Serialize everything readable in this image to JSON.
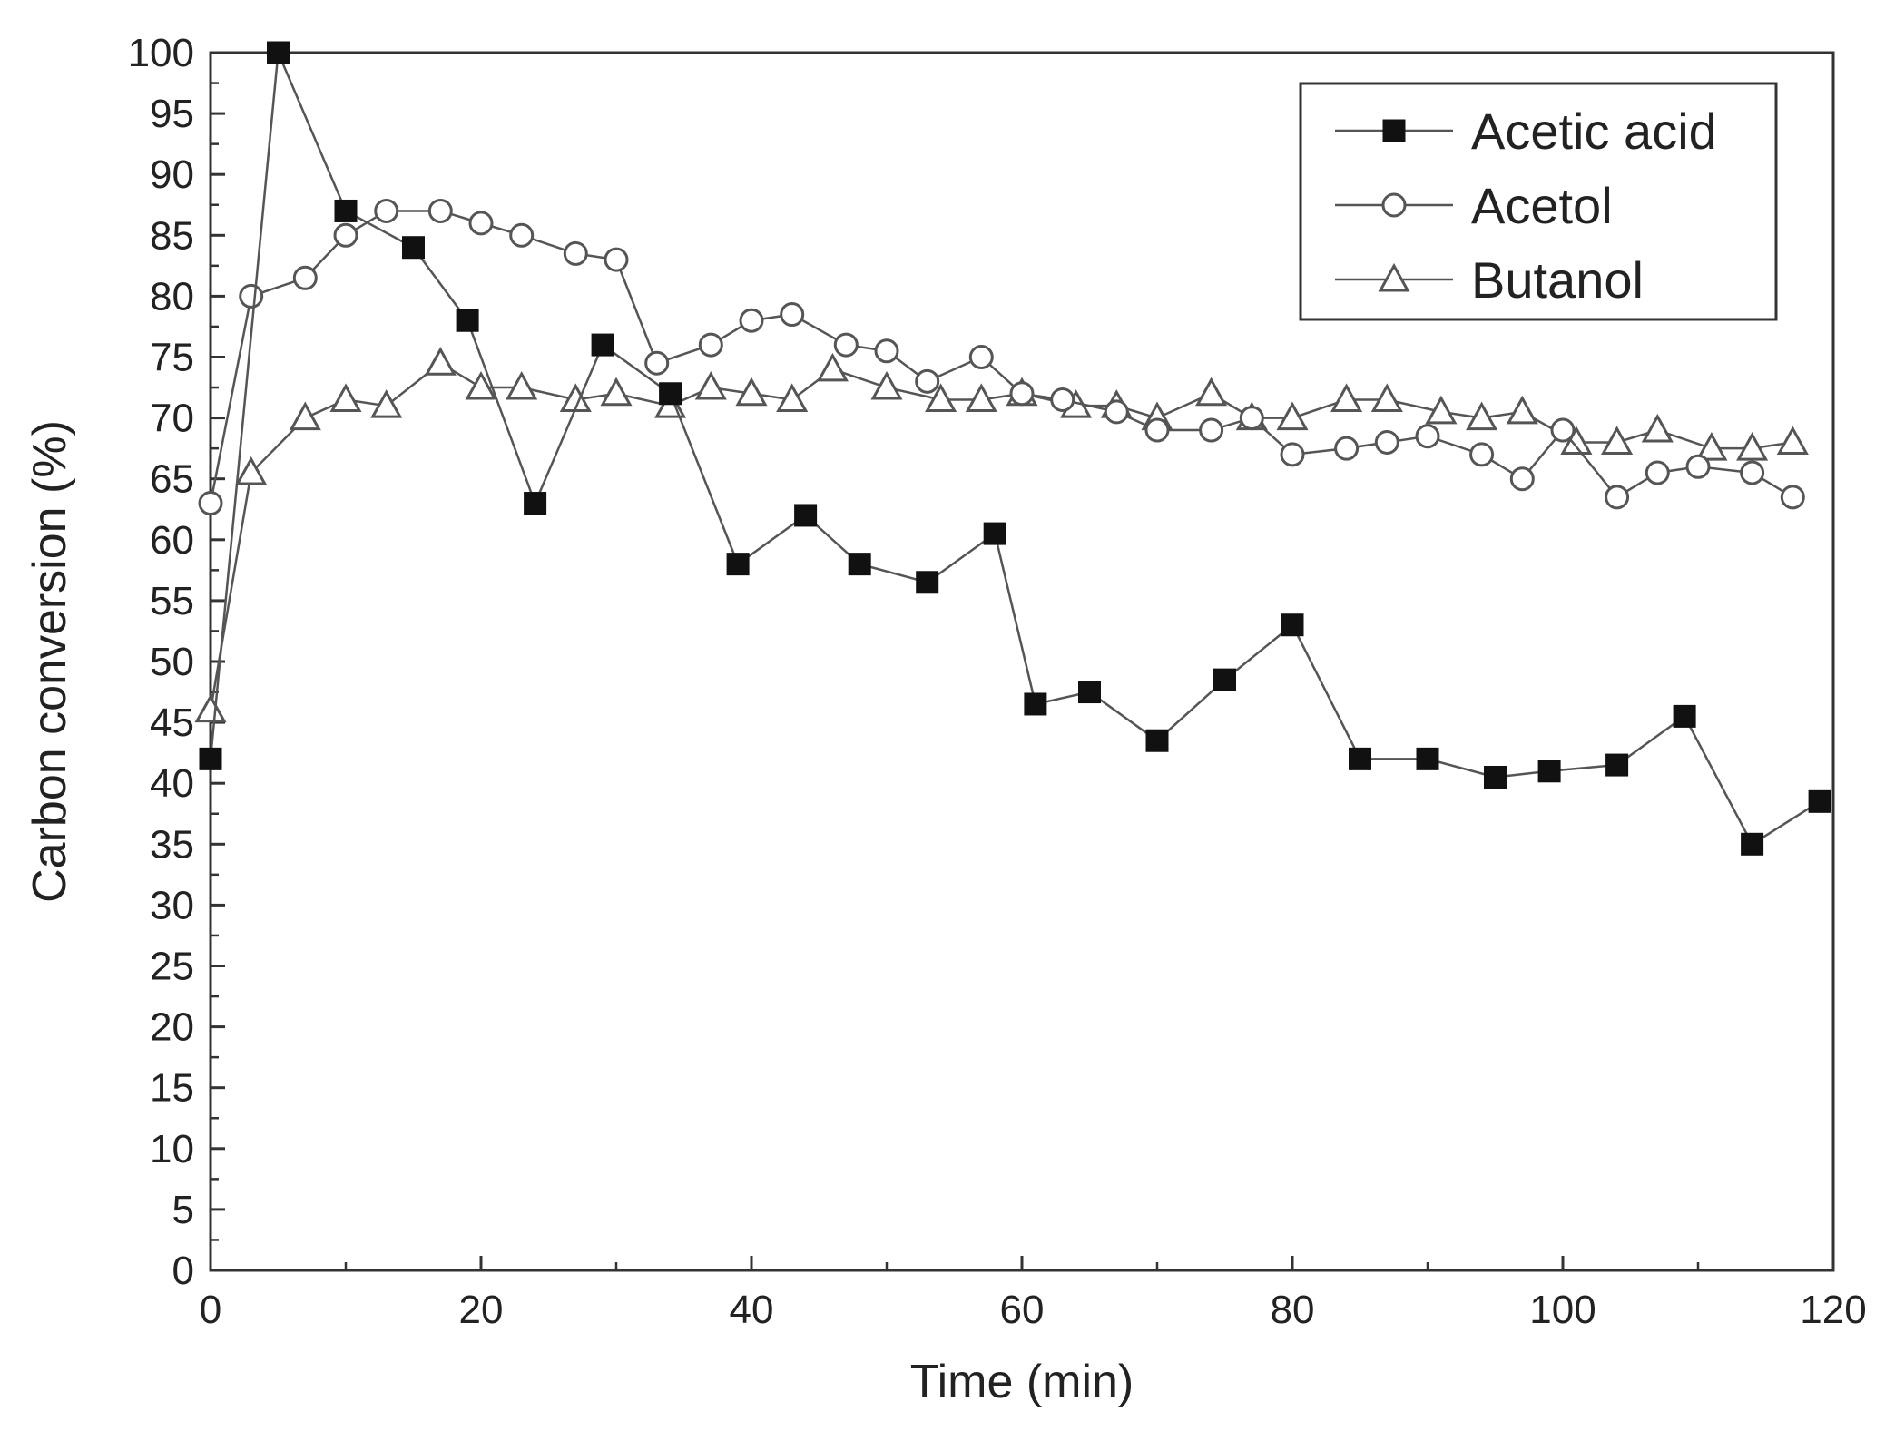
{
  "chart_data": {
    "type": "line",
    "title": "",
    "xlabel": "Time (min)",
    "ylabel": "Carbon conversion (%)",
    "xlim": [
      0,
      120
    ],
    "ylim": [
      0,
      100
    ],
    "xticks": [
      0,
      20,
      40,
      60,
      80,
      100,
      120
    ],
    "yticks": [
      0,
      5,
      10,
      15,
      20,
      25,
      30,
      35,
      40,
      45,
      50,
      55,
      60,
      65,
      70,
      75,
      80,
      85,
      90,
      95,
      100
    ],
    "grid": false,
    "legend_position": "top-right",
    "colors": {
      "line": "#555555",
      "marker": "#111111",
      "axis": "#333333"
    },
    "series": [
      {
        "name": "Acetic acid",
        "marker": "filled-square",
        "x": [
          0,
          5,
          10,
          15,
          19,
          24,
          29,
          34,
          39,
          44,
          48,
          53,
          58,
          61,
          65,
          70,
          75,
          80,
          85,
          90,
          95,
          99,
          104,
          109,
          114,
          119
        ],
        "y": [
          42,
          100,
          87,
          84,
          78,
          63,
          76,
          72,
          58,
          62,
          58,
          56.5,
          60.5,
          46.5,
          47.5,
          43.5,
          48.5,
          53,
          42,
          42,
          40.5,
          41,
          41.5,
          45.5,
          35,
          38.5
        ]
      },
      {
        "name": "Acetol",
        "marker": "open-circle",
        "x": [
          0,
          3,
          7,
          10,
          13,
          17,
          20,
          23,
          27,
          30,
          33,
          37,
          40,
          43,
          47,
          50,
          53,
          57,
          60,
          63,
          67,
          70,
          74,
          77,
          80,
          84,
          87,
          90,
          94,
          97,
          100,
          104,
          107,
          110,
          114,
          117
        ],
        "y": [
          63,
          80,
          81.5,
          85,
          87,
          87,
          86,
          85,
          83.5,
          83,
          74.5,
          76,
          78,
          78.5,
          76,
          75.5,
          73,
          75,
          72,
          71.5,
          70.5,
          69,
          69,
          70,
          67,
          67.5,
          68,
          68.5,
          67,
          65,
          69,
          63.5,
          65.5,
          66,
          65.5,
          63.5
        ]
      },
      {
        "name": "Butanol",
        "marker": "open-triangle",
        "x": [
          0,
          3,
          7,
          10,
          13,
          17,
          20,
          23,
          27,
          30,
          34,
          37,
          40,
          43,
          46,
          50,
          54,
          57,
          60,
          64,
          67,
          70,
          74,
          77,
          80,
          84,
          87,
          91,
          94,
          97,
          101,
          104,
          107,
          111,
          114,
          117
        ],
        "y": [
          46,
          65.5,
          70,
          71.5,
          71,
          74.5,
          72.5,
          72.5,
          71.5,
          72,
          71,
          72.5,
          72,
          71.5,
          74,
          72.5,
          71.5,
          71.5,
          72,
          71,
          71,
          70,
          72,
          70,
          70,
          71.5,
          71.5,
          70.5,
          70,
          70.5,
          68,
          68,
          69,
          67.5,
          67.5,
          68
        ]
      }
    ]
  }
}
